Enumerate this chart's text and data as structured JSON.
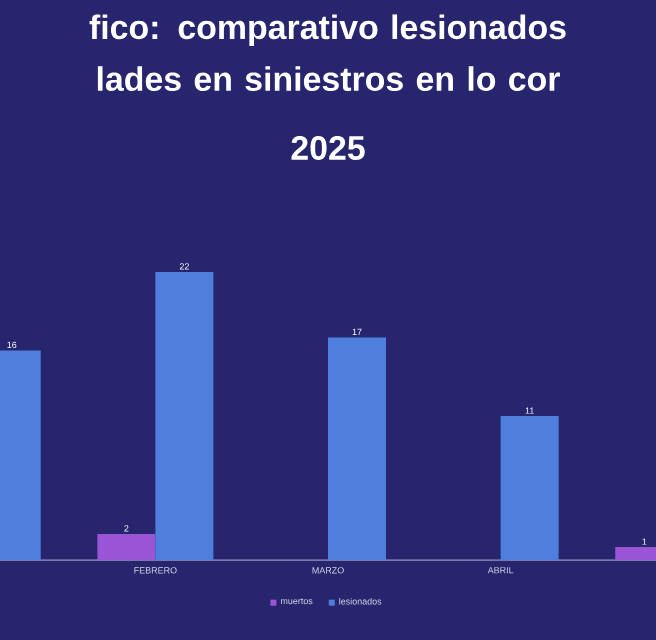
{
  "chart_data": {
    "type": "bar",
    "title": "fico: comparativo lesionados lades en siniestros en lo cor",
    "subtitle": "2025",
    "categories": [
      null,
      "FEBRERO",
      "MARZO",
      "ABRIL",
      null
    ],
    "series": [
      {
        "name": "muertos",
        "color": "#9a55d6",
        "values": [
          null,
          2,
          null,
          null,
          1
        ]
      },
      {
        "name": "lesionados",
        "color": "#4f7fdc",
        "values": [
          16,
          22,
          17,
          11,
          null
        ]
      }
    ],
    "legend": "bottom",
    "data_labels": true
  }
}
